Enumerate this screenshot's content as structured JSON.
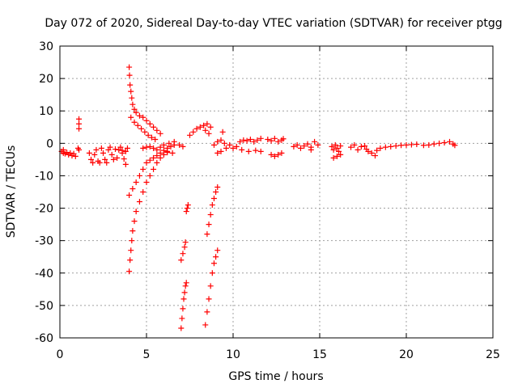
{
  "chart_data": {
    "type": "scatter",
    "title": "Day 072 of 2020, Sidereal Day-to-day VTEC variation (SDTVAR) for receiver ptgg",
    "xlabel": "GPS time / hours",
    "ylabel": "SDTVAR / TECUs",
    "xlim": [
      0,
      25
    ],
    "ylim": [
      -60,
      30
    ],
    "xticks": [
      0,
      5,
      10,
      15,
      20,
      25
    ],
    "yticks": [
      -60,
      -50,
      -40,
      -30,
      -20,
      -10,
      0,
      10,
      20,
      30
    ],
    "grid": true,
    "marker": "+",
    "series": [
      {
        "color": "#ff0000",
        "points": [
          [
            0.1,
            -2.5
          ],
          [
            0.2,
            -3
          ],
          [
            0.3,
            -3.2
          ],
          [
            0.4,
            -2.8
          ],
          [
            0.5,
            -3.5
          ],
          [
            0.6,
            -3
          ],
          [
            0.7,
            -3.8
          ],
          [
            0.8,
            -3.2
          ],
          [
            0.9,
            -4
          ],
          [
            0.2,
            -2
          ],
          [
            1.1,
            7.5
          ],
          [
            1.1,
            6
          ],
          [
            1.1,
            4.5
          ],
          [
            1.05,
            -1.5
          ],
          [
            1.1,
            -2
          ],
          [
            1.7,
            -3
          ],
          [
            1.8,
            -5
          ],
          [
            1.9,
            -6
          ],
          [
            2.0,
            -3.5
          ],
          [
            2.1,
            -2
          ],
          [
            2.2,
            -5.5
          ],
          [
            2.3,
            -6
          ],
          [
            2.4,
            -1.5
          ],
          [
            2.5,
            -3
          ],
          [
            2.6,
            -5
          ],
          [
            2.7,
            -6
          ],
          [
            2.8,
            -2
          ],
          [
            2.9,
            -1.2
          ],
          [
            3.0,
            -3.5
          ],
          [
            3.1,
            -5
          ],
          [
            3.2,
            -1.8
          ],
          [
            3.3,
            -4.5
          ],
          [
            3.4,
            -2
          ],
          [
            3.5,
            -1.2
          ],
          [
            3.6,
            -3
          ],
          [
            3.7,
            -4.8
          ],
          [
            3.8,
            -6.5
          ],
          [
            3.9,
            -1.5
          ],
          [
            3.6,
            -2.2
          ],
          [
            3.8,
            -2.5
          ],
          [
            4.0,
            23.5
          ],
          [
            4.02,
            21
          ],
          [
            4.05,
            18
          ],
          [
            4.1,
            16
          ],
          [
            4.15,
            14
          ],
          [
            4.2,
            12
          ],
          [
            4.3,
            10.5
          ],
          [
            4.4,
            9.5
          ],
          [
            4.6,
            8.5
          ],
          [
            4.8,
            8
          ],
          [
            5.0,
            7
          ],
          [
            5.2,
            6
          ],
          [
            5.4,
            5
          ],
          [
            5.6,
            4
          ],
          [
            5.8,
            3
          ],
          [
            4.1,
            8
          ],
          [
            4.3,
            6.5
          ],
          [
            4.5,
            5.5
          ],
          [
            4.7,
            4.5
          ],
          [
            4.9,
            3.5
          ],
          [
            5.1,
            2.5
          ],
          [
            5.3,
            1.8
          ],
          [
            5.5,
            1.2
          ],
          [
            4.0,
            -39.5
          ],
          [
            4.05,
            -36
          ],
          [
            4.1,
            -33
          ],
          [
            4.15,
            -30
          ],
          [
            4.2,
            -27
          ],
          [
            4.3,
            -24
          ],
          [
            4.4,
            -21
          ],
          [
            4.6,
            -18
          ],
          [
            4.8,
            -15
          ],
          [
            5.0,
            -12
          ],
          [
            5.2,
            -10
          ],
          [
            5.4,
            -8
          ],
          [
            5.6,
            -6
          ],
          [
            5.8,
            -4.5
          ],
          [
            6.0,
            -3.5
          ],
          [
            6.2,
            -2.8
          ],
          [
            4.0,
            -16
          ],
          [
            4.2,
            -14
          ],
          [
            4.4,
            -12
          ],
          [
            4.6,
            -10
          ],
          [
            4.8,
            -8
          ],
          [
            5.0,
            -6
          ],
          [
            5.2,
            -5.2
          ],
          [
            5.4,
            -4.5
          ],
          [
            5.6,
            -3.8
          ],
          [
            5.8,
            -3
          ],
          [
            6.0,
            -2.2
          ],
          [
            6.2,
            -1.5
          ],
          [
            6.4,
            -1
          ],
          [
            6.6,
            -0.5
          ],
          [
            4.8,
            -1.5
          ],
          [
            5.0,
            -1.2
          ],
          [
            5.2,
            -1
          ],
          [
            5.4,
            -1.5
          ],
          [
            5.6,
            -2
          ],
          [
            5.8,
            -1.2
          ],
          [
            6.0,
            -0.5
          ],
          [
            6.3,
            0
          ],
          [
            6.6,
            0.5
          ],
          [
            6.9,
            -0.5
          ],
          [
            7.1,
            -1
          ],
          [
            6.5,
            -3
          ],
          [
            6.2,
            -2.5
          ],
          [
            7.0,
            -57
          ],
          [
            7.05,
            -54
          ],
          [
            7.1,
            -51
          ],
          [
            7.15,
            -48
          ],
          [
            7.2,
            -46
          ],
          [
            7.25,
            -44
          ],
          [
            7.3,
            -43
          ],
          [
            7.0,
            -36
          ],
          [
            7.1,
            -34
          ],
          [
            7.2,
            -32
          ],
          [
            7.25,
            -30.5
          ],
          [
            7.3,
            -21
          ],
          [
            7.35,
            -20
          ],
          [
            7.4,
            -19
          ],
          [
            7.5,
            2.5
          ],
          [
            7.7,
            3.5
          ],
          [
            7.9,
            4.5
          ],
          [
            8.1,
            5
          ],
          [
            8.3,
            5.5
          ],
          [
            8.5,
            6
          ],
          [
            8.7,
            5
          ],
          [
            8.6,
            3
          ],
          [
            8.4,
            4
          ],
          [
            8.4,
            -56
          ],
          [
            8.5,
            -52
          ],
          [
            8.6,
            -48
          ],
          [
            8.7,
            -44
          ],
          [
            8.8,
            -40
          ],
          [
            8.9,
            -37
          ],
          [
            9.0,
            -35
          ],
          [
            9.1,
            -33
          ],
          [
            8.5,
            -28
          ],
          [
            8.6,
            -25
          ],
          [
            8.7,
            -22
          ],
          [
            8.8,
            -19
          ],
          [
            8.9,
            -17
          ],
          [
            9.0,
            -15
          ],
          [
            9.1,
            -13.5
          ],
          [
            8.9,
            -0.5
          ],
          [
            9.1,
            0.5
          ],
          [
            9.3,
            1
          ],
          [
            9.5,
            0
          ],
          [
            9.3,
            -2.5
          ],
          [
            9.6,
            -1.5
          ],
          [
            9.8,
            -0.5
          ],
          [
            9.1,
            -3
          ],
          [
            9.4,
            3.5
          ],
          [
            10.0,
            -1.5
          ],
          [
            10.2,
            -1
          ],
          [
            10.4,
            0.5
          ],
          [
            10.6,
            1
          ],
          [
            10.8,
            0.8
          ],
          [
            11.0,
            1.2
          ],
          [
            11.2,
            0.5
          ],
          [
            11.4,
            1
          ],
          [
            11.6,
            1.5
          ],
          [
            10.5,
            -2
          ],
          [
            10.9,
            -2.5
          ],
          [
            11.3,
            -2.2
          ],
          [
            11.6,
            -2.5
          ],
          [
            12.0,
            1.2
          ],
          [
            12.2,
            0.8
          ],
          [
            12.4,
            1.5
          ],
          [
            12.6,
            0.5
          ],
          [
            12.8,
            1
          ],
          [
            12.9,
            1.4
          ],
          [
            12.2,
            -3.5
          ],
          [
            12.4,
            -4
          ],
          [
            12.6,
            -3.5
          ],
          [
            12.8,
            -3
          ],
          [
            13.5,
            -1
          ],
          [
            13.7,
            -0.5
          ],
          [
            13.9,
            -1.5
          ],
          [
            14.1,
            -0.8
          ],
          [
            14.3,
            -0.2
          ],
          [
            14.5,
            -1.2
          ],
          [
            14.7,
            0.5
          ],
          [
            14.9,
            -0.5
          ],
          [
            14.5,
            -2
          ],
          [
            15.7,
            -1
          ],
          [
            15.8,
            -2
          ],
          [
            15.9,
            -0.5
          ],
          [
            16.0,
            -1.5
          ],
          [
            16.1,
            -2.5
          ],
          [
            16.2,
            -0.8
          ],
          [
            15.8,
            -4.5
          ],
          [
            16.0,
            -4
          ],
          [
            16.2,
            -3.5
          ],
          [
            16.8,
            -1.2
          ],
          [
            17.0,
            -0.5
          ],
          [
            17.2,
            -2
          ],
          [
            17.4,
            -1
          ],
          [
            17.6,
            -0.8
          ],
          [
            17.8,
            -2.5
          ],
          [
            18.0,
            -3
          ],
          [
            18.2,
            -3.8
          ],
          [
            18.3,
            -2.2
          ],
          [
            17.7,
            -1.8
          ],
          [
            18.5,
            -1.5
          ],
          [
            18.8,
            -1.2
          ],
          [
            19.1,
            -1
          ],
          [
            19.4,
            -0.8
          ],
          [
            19.7,
            -0.6
          ],
          [
            20.0,
            -0.5
          ],
          [
            20.3,
            -0.4
          ],
          [
            20.6,
            -0.3
          ],
          [
            21.0,
            -0.6
          ],
          [
            21.3,
            -0.5
          ],
          [
            21.6,
            -0.2
          ],
          [
            21.9,
            0
          ],
          [
            22.2,
            0.2
          ],
          [
            22.5,
            0.5
          ],
          [
            22.7,
            -0.2
          ],
          [
            22.8,
            -0.6
          ]
        ]
      }
    ]
  }
}
